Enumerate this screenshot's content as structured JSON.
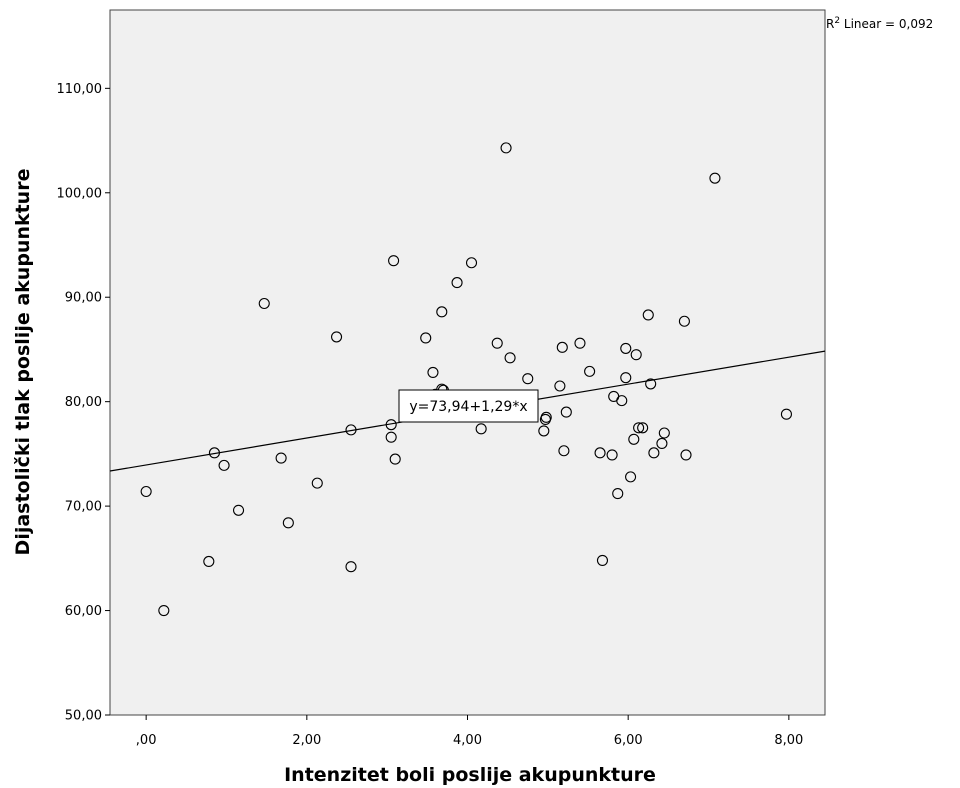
{
  "chart_data": {
    "type": "scatter",
    "xlabel": "Intenzitet boli poslije akupunkture",
    "ylabel": "Dijastolički tlak poslije akupunkture",
    "xlim": [
      -0.45,
      8.45
    ],
    "ylim": [
      50,
      117.5
    ],
    "x_ticks": [
      0,
      2,
      4,
      6,
      8
    ],
    "x_tick_labels": [
      ",00",
      "2,00",
      "4,00",
      "6,00",
      "8,00"
    ],
    "y_ticks": [
      50,
      60,
      70,
      80,
      90,
      100,
      110
    ],
    "y_tick_labels": [
      "50,00",
      "60,00",
      "70,00",
      "80,00",
      "90,00",
      "100,00",
      "110,00"
    ],
    "grid": false,
    "r2_label": {
      "prefix": "R",
      "superscript": "2",
      "suffix": " Linear = 0,092"
    },
    "fit_line": {
      "intercept": 73.94,
      "slope": 1.29,
      "equation_label": "y=73,94+1,29*x"
    },
    "points": [
      {
        "x": 0.0,
        "y": 71.4
      },
      {
        "x": 0.22,
        "y": 60.0
      },
      {
        "x": 0.78,
        "y": 64.7
      },
      {
        "x": 0.85,
        "y": 75.1
      },
      {
        "x": 0.97,
        "y": 73.9
      },
      {
        "x": 1.15,
        "y": 69.6
      },
      {
        "x": 1.47,
        "y": 89.4
      },
      {
        "x": 1.68,
        "y": 74.6
      },
      {
        "x": 1.77,
        "y": 68.4
      },
      {
        "x": 2.13,
        "y": 72.2
      },
      {
        "x": 2.37,
        "y": 86.2
      },
      {
        "x": 2.55,
        "y": 77.3
      },
      {
        "x": 2.55,
        "y": 64.2
      },
      {
        "x": 3.05,
        "y": 76.6
      },
      {
        "x": 3.05,
        "y": 77.8
      },
      {
        "x": 3.08,
        "y": 93.5
      },
      {
        "x": 3.1,
        "y": 74.5
      },
      {
        "x": 3.48,
        "y": 86.1
      },
      {
        "x": 3.57,
        "y": 82.8
      },
      {
        "x": 3.6,
        "y": 80.7
      },
      {
        "x": 3.68,
        "y": 88.6
      },
      {
        "x": 3.68,
        "y": 81.2
      },
      {
        "x": 3.7,
        "y": 81.1
      },
      {
        "x": 3.87,
        "y": 91.4
      },
      {
        "x": 4.05,
        "y": 93.3
      },
      {
        "x": 4.17,
        "y": 77.4
      },
      {
        "x": 4.37,
        "y": 85.6
      },
      {
        "x": 4.48,
        "y": 104.3
      },
      {
        "x": 4.53,
        "y": 84.2
      },
      {
        "x": 4.75,
        "y": 82.2
      },
      {
        "x": 4.95,
        "y": 77.2
      },
      {
        "x": 4.97,
        "y": 78.3
      },
      {
        "x": 4.98,
        "y": 78.5
      },
      {
        "x": 5.15,
        "y": 81.5
      },
      {
        "x": 5.18,
        "y": 85.2
      },
      {
        "x": 5.2,
        "y": 75.3
      },
      {
        "x": 5.23,
        "y": 79.0
      },
      {
        "x": 5.4,
        "y": 85.6
      },
      {
        "x": 5.52,
        "y": 82.9
      },
      {
        "x": 5.65,
        "y": 75.1
      },
      {
        "x": 5.68,
        "y": 64.8
      },
      {
        "x": 5.8,
        "y": 74.9
      },
      {
        "x": 5.82,
        "y": 80.5
      },
      {
        "x": 5.87,
        "y": 71.2
      },
      {
        "x": 5.92,
        "y": 80.1
      },
      {
        "x": 5.97,
        "y": 85.1
      },
      {
        "x": 5.97,
        "y": 82.3
      },
      {
        "x": 6.03,
        "y": 72.8
      },
      {
        "x": 6.07,
        "y": 76.4
      },
      {
        "x": 6.1,
        "y": 84.5
      },
      {
        "x": 6.13,
        "y": 77.5
      },
      {
        "x": 6.18,
        "y": 77.5
      },
      {
        "x": 6.25,
        "y": 88.3
      },
      {
        "x": 6.28,
        "y": 81.7
      },
      {
        "x": 6.32,
        "y": 75.1
      },
      {
        "x": 6.42,
        "y": 76.0
      },
      {
        "x": 6.45,
        "y": 77.0
      },
      {
        "x": 6.7,
        "y": 87.7
      },
      {
        "x": 6.72,
        "y": 74.9
      },
      {
        "x": 7.08,
        "y": 101.4
      },
      {
        "x": 7.97,
        "y": 78.8
      }
    ]
  }
}
